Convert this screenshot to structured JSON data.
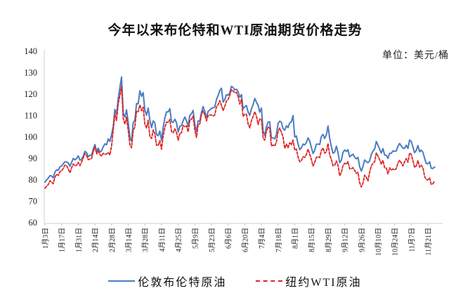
{
  "title": "今年以来布伦特和WTI原油期货价格走势",
  "unit_label": "单位：美元/桶",
  "legend": {
    "brent": {
      "label": "伦敦布伦特原油",
      "color": "#4a7cc2",
      "style": "solid"
    },
    "wti": {
      "label": "纽约WTI原油",
      "color": "#df2422",
      "style": "dashed"
    }
  },
  "chart_data": {
    "type": "line",
    "title": "今年以来布伦特和WTI原油期货价格走势",
    "ylabel": "美元/桶",
    "ylim": [
      60,
      140
    ],
    "y_ticks": [
      60,
      70,
      80,
      90,
      100,
      110,
      120,
      130,
      140
    ],
    "grid": false,
    "legend_position": "bottom",
    "x_tick_interval_points": 10,
    "x_tick_labels": [
      "1月3日",
      "1月17日",
      "1月31日",
      "2月14日",
      "2月28日",
      "3月14日",
      "3月28日",
      "4月11日",
      "4月25日",
      "5月9日",
      "5月23日",
      "6月6日",
      "6月20日",
      "7月4日",
      "7月18日",
      "8月1日",
      "8月15日",
      "8月29日",
      "9月12日",
      "9月26日",
      "10月10日",
      "10月24日",
      "11月7日",
      "11月21日"
    ],
    "series": [
      {
        "name": "伦敦布伦特原油",
        "color": "#4a7cc2",
        "line_style": "solid",
        "values": [
          79.0,
          80.0,
          80.8,
          82.0,
          81.8,
          80.9,
          83.7,
          84.7,
          84.5,
          86.1,
          86.5,
          87.5,
          88.4,
          88.4,
          87.9,
          86.3,
          88.2,
          90.0,
          89.3,
          90.0,
          91.2,
          89.2,
          89.5,
          91.1,
          93.3,
          92.7,
          90.8,
          91.5,
          91.4,
          94.4,
          96.5,
          93.3,
          94.8,
          93.0,
          93.5,
          95.4,
          96.8,
          96.4,
          99.1,
          97.9,
          101.0,
          105.0,
          112.9,
          110.5,
          118.1,
          123.2,
          128.0,
          111.1,
          109.3,
          112.7,
          106.9,
          99.9,
          98.0,
          106.6,
          107.9,
          115.6,
          115.5,
          121.6,
          119.0,
          120.7,
          112.5,
          110.2,
          113.5,
          107.9,
          104.4,
          107.5,
          106.6,
          101.1,
          100.6,
          102.8,
          98.5,
          104.6,
          108.8,
          111.7,
          111.7,
          113.2,
          107.2,
          106.8,
          108.3,
          106.7,
          102.3,
          105.0,
          105.3,
          107.6,
          109.3,
          107.6,
          105.0,
          110.1,
          110.9,
          112.4,
          105.9,
          102.5,
          107.5,
          107.4,
          111.6,
          114.2,
          112.0,
          109.1,
          112.0,
          112.6,
          113.4,
          113.6,
          114.0,
          117.4,
          119.4,
          121.7,
          122.8,
          116.3,
          117.6,
          119.7,
          119.5,
          120.6,
          123.6,
          123.1,
          122.0,
          122.3,
          121.2,
          118.5,
          119.8,
          113.1,
          114.1,
          114.7,
          111.7,
          110.1,
          113.1,
          115.1,
          118.0,
          116.3,
          114.8,
          111.6,
          113.5,
          102.8,
          100.7,
          104.7,
          107.0,
          107.1,
          99.5,
          99.6,
          99.1,
          101.2,
          106.3,
          107.4,
          106.9,
          103.9,
          103.2,
          105.2,
          104.4,
          106.6,
          107.1,
          110.0,
          100.0,
          100.5,
          96.8,
          94.1,
          94.9,
          96.7,
          96.3,
          97.4,
          99.6,
          98.2,
          95.1,
          92.3,
          93.7,
          96.6,
          96.7,
          96.5,
          100.2,
          101.2,
          99.3,
          101.0,
          105.1,
          99.3,
          95.6,
          92.4,
          93.0,
          95.7,
          92.8,
          88.0,
          89.2,
          92.8,
          94.0,
          93.2,
          94.1,
          90.8,
          91.4,
          92.0,
          90.6,
          89.8,
          90.5,
          86.2,
          84.1,
          86.3,
          89.3,
          88.5,
          88.0,
          88.9,
          91.8,
          93.4,
          94.4,
          97.9,
          96.2,
          94.3,
          92.5,
          94.6,
          91.6,
          91.4,
          90.0,
          92.4,
          92.4,
          93.5,
          93.3,
          93.5,
          95.7,
          97.0,
          95.8,
          94.8,
          94.7,
          96.2,
          94.7,
          98.6,
          97.9,
          95.4,
          92.7,
          93.7,
          96.0,
          93.1,
          93.9,
          92.9,
          90.1,
          87.6,
          87.5,
          88.4,
          85.4,
          85.3,
          86.0
        ]
      },
      {
        "name": "纽约WTI原油",
        "color": "#df2422",
        "line_style": "dashed",
        "values": [
          76.1,
          77.0,
          77.8,
          79.6,
          78.9,
          78.2,
          81.2,
          82.6,
          82.1,
          83.8,
          84.2,
          85.4,
          86.9,
          86.5,
          85.1,
          83.3,
          85.6,
          87.4,
          86.6,
          86.8,
          88.2,
          86.6,
          88.3,
          90.3,
          92.3,
          91.3,
          89.4,
          89.7,
          89.9,
          93.1,
          95.5,
          92.1,
          93.7,
          91.8,
          91.1,
          92.4,
          91.9,
          92.1,
          92.8,
          91.6,
          95.7,
          103.4,
          110.6,
          107.7,
          115.7,
          119.4,
          123.7,
          108.7,
          106.0,
          109.3,
          103.0,
          96.4,
          95.0,
          103.0,
          104.7,
          112.1,
          111.8,
          115.0,
          112.3,
          113.9,
          106.0,
          104.2,
          107.8,
          100.3,
          99.3,
          103.3,
          101.5,
          96.2,
          96.0,
          98.3,
          94.3,
          100.6,
          104.3,
          107.0,
          106.9,
          108.2,
          102.6,
          102.0,
          103.8,
          102.1,
          98.5,
          101.7,
          102.0,
          105.4,
          104.7,
          105.2,
          102.4,
          107.8,
          108.3,
          109.8,
          103.1,
          99.8,
          105.7,
          106.1,
          110.5,
          112.2,
          110.3,
          107.5,
          110.0,
          110.3,
          110.3,
          109.8,
          110.3,
          114.1,
          115.1,
          117.0,
          114.7,
          112.3,
          114.3,
          116.9,
          117.6,
          119.4,
          122.1,
          121.5,
          120.7,
          120.9,
          118.9,
          115.3,
          117.6,
          109.6,
          110.6,
          110.7,
          106.2,
          104.3,
          107.6,
          109.6,
          111.8,
          109.8,
          105.8,
          108.4,
          108.4,
          99.5,
          98.5,
          102.7,
          104.8,
          104.1,
          95.8,
          96.3,
          95.8,
          97.6,
          102.6,
          104.2,
          102.3,
          99.9,
          94.7,
          96.7,
          95.0,
          97.3,
          96.4,
          98.6,
          93.9,
          94.4,
          90.7,
          88.5,
          89.0,
          90.8,
          90.5,
          91.9,
          94.3,
          92.1,
          89.4,
          86.5,
          88.1,
          90.5,
          90.8,
          90.4,
          93.7,
          94.9,
          92.5,
          93.1,
          97.0,
          91.6,
          89.6,
          86.6,
          86.9,
          88.8,
          86.9,
          81.9,
          83.5,
          86.8,
          87.8,
          87.3,
          88.5,
          85.1,
          85.1,
          85.7,
          84.5,
          83.0,
          83.5,
          78.7,
          76.7,
          78.5,
          82.2,
          81.2,
          79.5,
          83.6,
          86.5,
          87.8,
          88.4,
          92.6,
          91.1,
          89.4,
          87.3,
          89.1,
          85.6,
          85.5,
          82.8,
          85.6,
          84.5,
          85.1,
          84.6,
          85.3,
          87.9,
          89.1,
          87.9,
          86.5,
          88.4,
          90.0,
          88.2,
          92.6,
          91.8,
          89.0,
          85.8,
          86.5,
          89.0,
          85.9,
          86.9,
          85.6,
          81.6,
          80.1,
          80.0,
          80.9,
          77.9,
          78.2,
          79.5
        ]
      }
    ]
  },
  "style": {
    "axis_color": "#d9d9d9",
    "tick_color": "#bfbfbf",
    "label_color": "#1f1f1f"
  }
}
